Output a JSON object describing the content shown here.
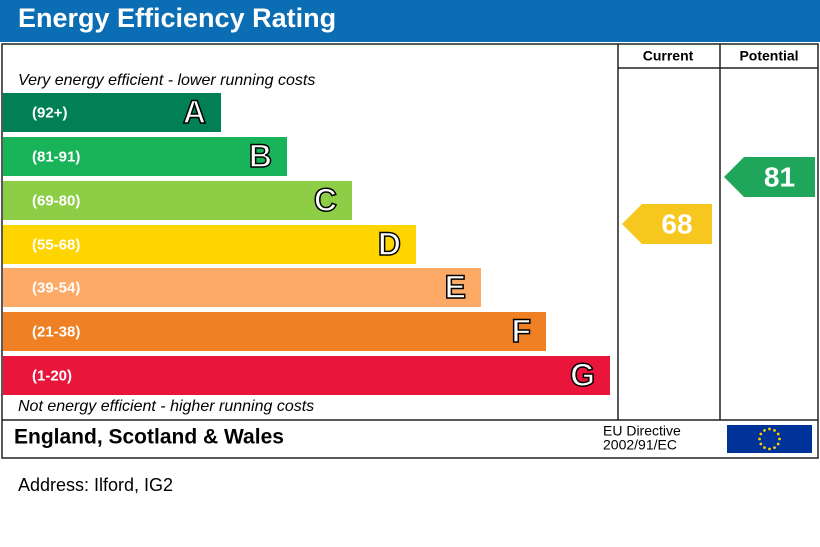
{
  "header": {
    "title": "Energy Efficiency Rating"
  },
  "columns": [
    "Current",
    "Potential"
  ],
  "top_note": "Very energy efficient - lower running costs",
  "bands": [
    {
      "range": "(92+)",
      "letter": "A",
      "color": "#008054"
    },
    {
      "range": "(81-91)",
      "letter": "B",
      "color": "#19b459"
    },
    {
      "range": "(69-80)",
      "letter": "C",
      "color": "#8dce46"
    },
    {
      "range": "(55-68)",
      "letter": "D",
      "color": "#ffd500"
    },
    {
      "range": "(39-54)",
      "letter": "E",
      "color": "#fcaa65"
    },
    {
      "range": "(21-38)",
      "letter": "F",
      "color": "#ef8023"
    },
    {
      "range": "(1-20)",
      "letter": "G",
      "color": "#e9153b"
    }
  ],
  "bottom_note": "Not energy efficient - higher running costs",
  "current": {
    "value": 68,
    "color": "#f6c81f"
  },
  "potential": {
    "value": 81,
    "color": "#1fa65a"
  },
  "footer": {
    "region": "England, Scotland & Wales",
    "directive": [
      "EU Directive",
      "2002/91/EC"
    ]
  },
  "address": "Address: Ilford, IG2"
}
